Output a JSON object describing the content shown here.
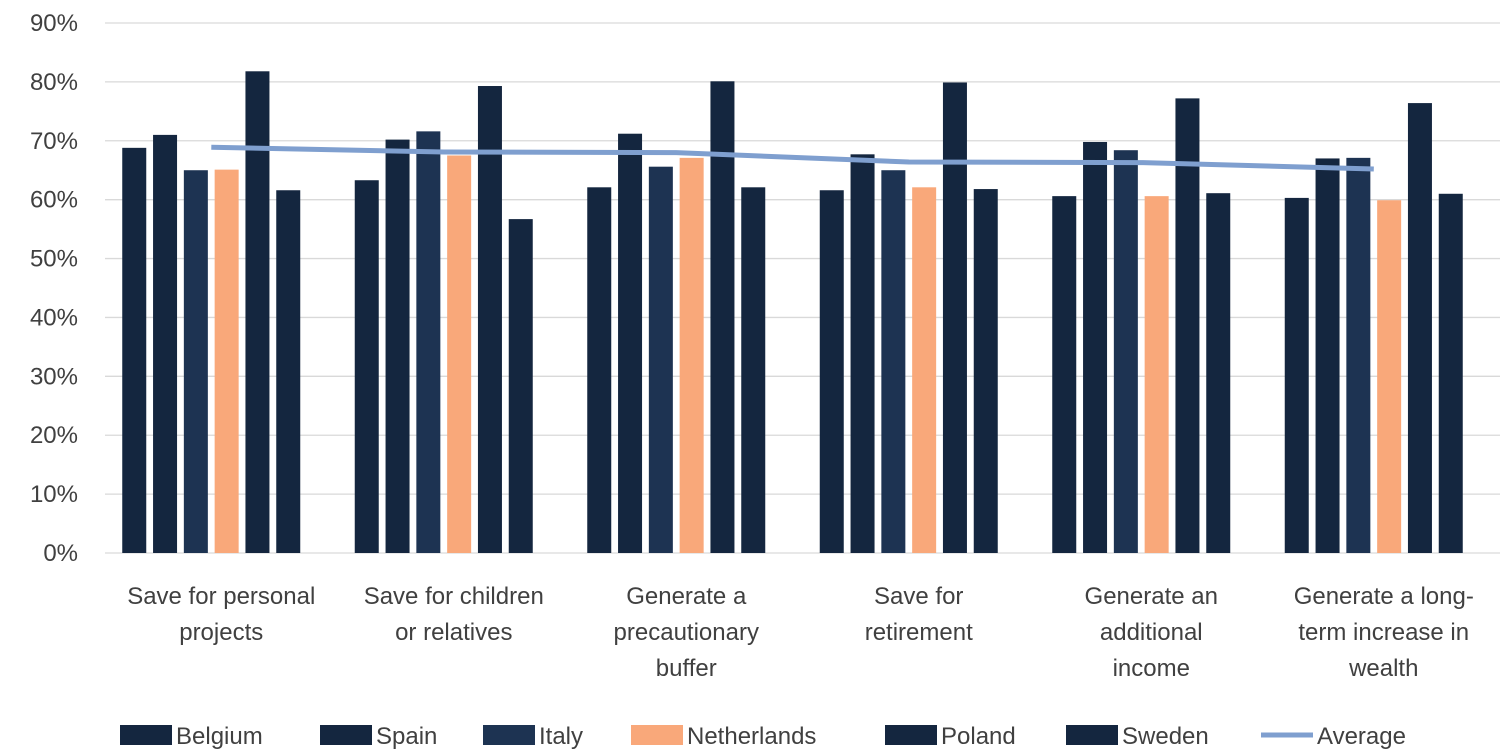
{
  "chart_data": {
    "type": "bar",
    "title": "",
    "xlabel": "",
    "ylabel": "",
    "ylim": [
      0,
      90
    ],
    "y_ticks": [
      0,
      10,
      20,
      30,
      40,
      50,
      60,
      70,
      80,
      90
    ],
    "y_tick_format": "percent",
    "grid": "horizontal",
    "legend_position": "bottom",
    "categories": [
      [
        "Save for personal",
        "projects"
      ],
      [
        "Save for children",
        "or relatives"
      ],
      [
        "Generate a",
        "precautionary",
        "buffer"
      ],
      [
        "Save for",
        "retirement"
      ],
      [
        "Generate an",
        "additional",
        "income"
      ],
      [
        "Generate a long-",
        "term increase in",
        "wealth"
      ]
    ],
    "series": [
      {
        "name": "Belgium",
        "type": "bar",
        "color": "#14263f",
        "values": [
          68.8,
          63.3,
          62.1,
          61.6,
          60.6,
          60.3
        ]
      },
      {
        "name": "Spain",
        "type": "bar",
        "color": "#14263f",
        "values": [
          71.0,
          70.2,
          71.2,
          67.7,
          69.8,
          67.0
        ]
      },
      {
        "name": "Italy",
        "type": "bar",
        "color": "#1d3352",
        "values": [
          65.0,
          71.6,
          65.6,
          65.0,
          68.4,
          67.1
        ]
      },
      {
        "name": "Netherlands",
        "type": "bar",
        "color": "#f9a87a",
        "values": [
          65.1,
          67.5,
          67.1,
          62.1,
          60.6,
          59.9
        ]
      },
      {
        "name": "Poland",
        "type": "bar",
        "color": "#14263f",
        "values": [
          81.8,
          79.3,
          80.1,
          79.9,
          77.2,
          76.4
        ]
      },
      {
        "name": "Sweden",
        "type": "bar",
        "color": "#14263f",
        "values": [
          61.6,
          56.7,
          62.1,
          61.8,
          61.1,
          61.0
        ]
      },
      {
        "name": "Average",
        "type": "line",
        "color": "#7f9fcf",
        "values": [
          68.9,
          68.1,
          68.0,
          66.4,
          66.3,
          65.2
        ]
      }
    ]
  }
}
